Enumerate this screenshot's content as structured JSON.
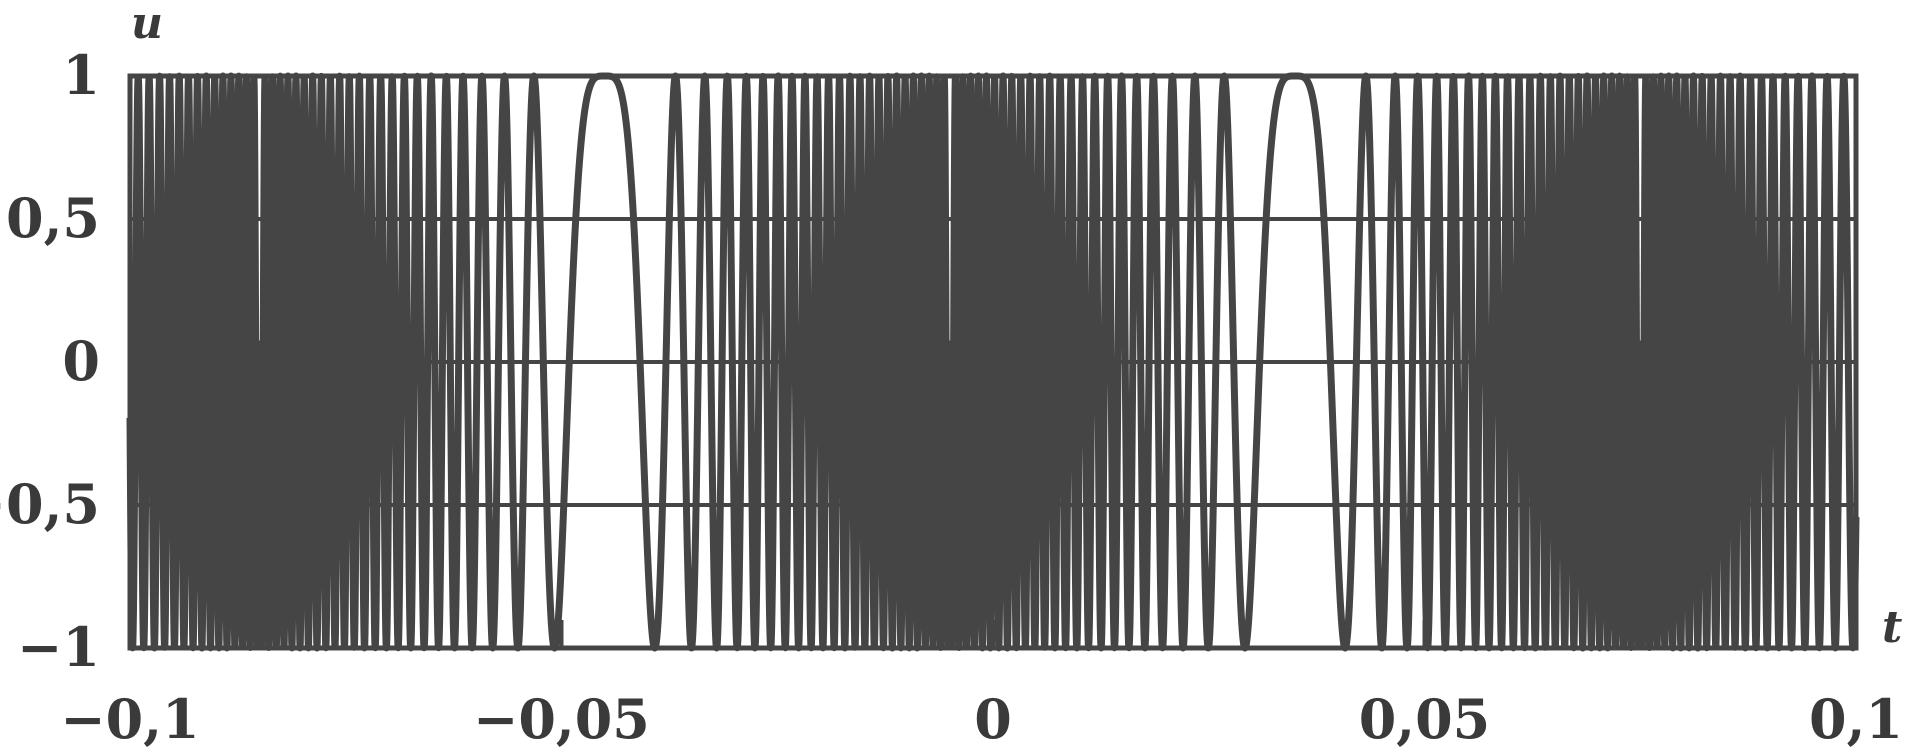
{
  "chart_data": {
    "type": "line",
    "title": "",
    "xlabel": "t",
    "ylabel": "u",
    "xlim": [
      -0.1,
      0.1
    ],
    "ylim": [
      -1,
      1
    ],
    "grid": true,
    "x_ticks": [
      {
        "value": -0.1,
        "label": "−0,1"
      },
      {
        "value": -0.05,
        "label": "−0,05"
      },
      {
        "value": 0,
        "label": "0"
      },
      {
        "value": 0.05,
        "label": "0,05"
      },
      {
        "value": 0.1,
        "label": "0,1"
      }
    ],
    "y_ticks": [
      {
        "value": 1,
        "label": "1"
      },
      {
        "value": 0.5,
        "label": "0,5"
      },
      {
        "value": 0,
        "label": "0"
      },
      {
        "value": -0.5,
        "label": "−0,5"
      },
      {
        "value": -1,
        "label": "−1"
      }
    ],
    "series": [
      {
        "function": "u = cos(2π·(f0·t + (k/2)·t²)), periodic in t with period 0.08 (centred at t0 = -0.045)",
        "period": 0.08,
        "peak_times": [
          -0.045,
          0.035
        ],
        "f0": 0,
        "k": 29700,
        "color": "#454545"
      }
    ],
    "colors": {
      "curve": "#454545",
      "grid": "#454545",
      "frame": "#454545"
    }
  }
}
